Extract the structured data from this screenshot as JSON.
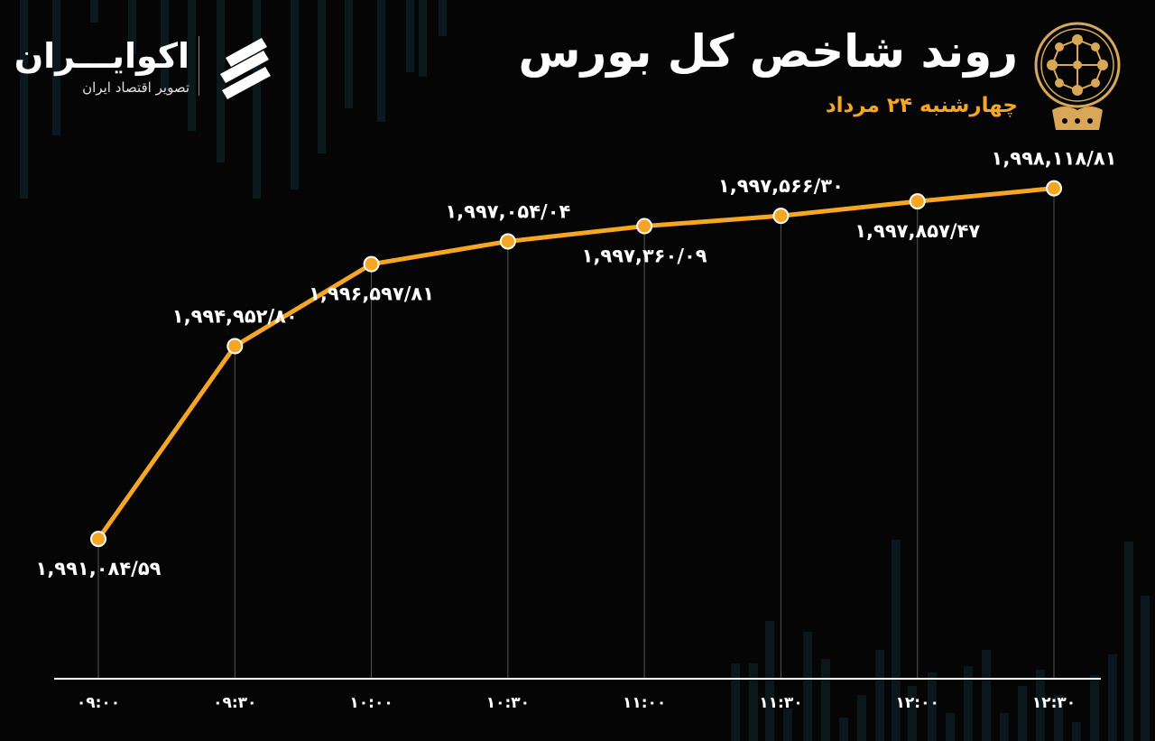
{
  "header": {
    "title": "روند شاخص کل بورس",
    "subtitle": "چهارشنبه ۲۴ مرداد"
  },
  "brand": {
    "name": "اکوایـــران",
    "tagline": "تصویر اقتصاد ایران"
  },
  "colors": {
    "background": "#050505",
    "line": "#f5a623",
    "marker": "#f5a623",
    "text": "#ffffff",
    "subtitle": "#f5a623",
    "background_bars": "#0f2a33"
  },
  "chart_data": {
    "type": "line",
    "x": [
      "۰۹:۰۰",
      "۰۹:۳۰",
      "۱۰:۰۰",
      "۱۰:۳۰",
      "۱۱:۰۰",
      "۱۱:۳۰",
      "۱۲:۰۰",
      "۱۲:۳۰"
    ],
    "values": [
      1991084.59,
      1994952.8,
      1996597.81,
      1997054.04,
      1997360.09,
      1997566.3,
      1997857.47,
      1998118.81
    ],
    "value_labels": [
      "۱,۹۹۱,۰۸۴/۵۹",
      "۱,۹۹۴,۹۵۲/۸۰",
      "۱,۹۹۶,۵۹۷/۸۱",
      "۱,۹۹۷,۰۵۴/۰۴",
      "۱,۹۹۷,۳۶۰/۰۹",
      "۱,۹۹۷,۵۶۶/۳۰",
      "۱,۹۹۷,۸۵۷/۴۷",
      "۱,۹۹۸,۱۱۸/۸۱"
    ],
    "label_side": [
      "below",
      "above",
      "below",
      "above",
      "below",
      "above",
      "below",
      "above"
    ],
    "grid": false,
    "ylim": [
      1990000,
      1999000
    ]
  }
}
